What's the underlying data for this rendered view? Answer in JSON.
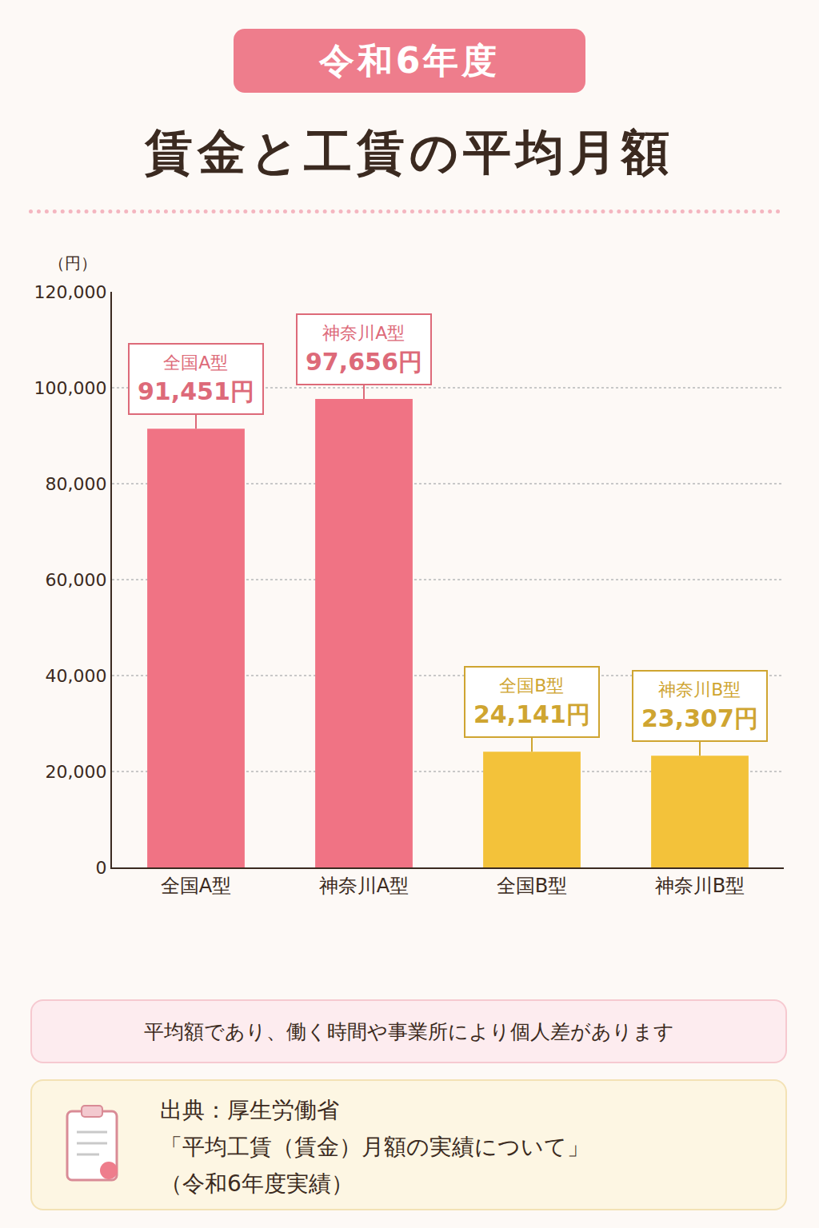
{
  "chart_data": {
    "type": "bar",
    "title": "賃金と工賃の平均月額",
    "subtitle": "令和6年度",
    "y_label": "（円）",
    "categories": [
      "全国A型",
      "神奈川A型",
      "全国B型",
      "神奈川B型"
    ],
    "values": [
      91451,
      97656,
      24141,
      23307
    ],
    "value_labels": [
      "91,451円",
      "97,656円",
      "24,141円",
      "23,307円"
    ],
    "colors": [
      "#f07384",
      "#f07384",
      "#f3c23a",
      "#f3c23a"
    ],
    "ylim": [
      0,
      120000
    ],
    "yticks": [
      0,
      {
        "value": 20000,
        "label": "20,000"
      },
      {
        "value": 40000,
        "label": "40,000"
      },
      {
        "value": 60000,
        "label": "60,000"
      },
      {
        "value": 80000,
        "label": "80,000"
      },
      {
        "value": 100000,
        "label": "100,000"
      },
      {
        "value": 120000,
        "label": "120,000"
      }
    ],
    "grid": true,
    "data_labels": true,
    "notes": [
      "平均額であり、働く時間や事業所により個人差があります"
    ],
    "source": [
      "出典：厚生労働省",
      "「平均工賃（賃金）月額の実績について」",
      "（令和6年度実績）"
    ]
  }
}
